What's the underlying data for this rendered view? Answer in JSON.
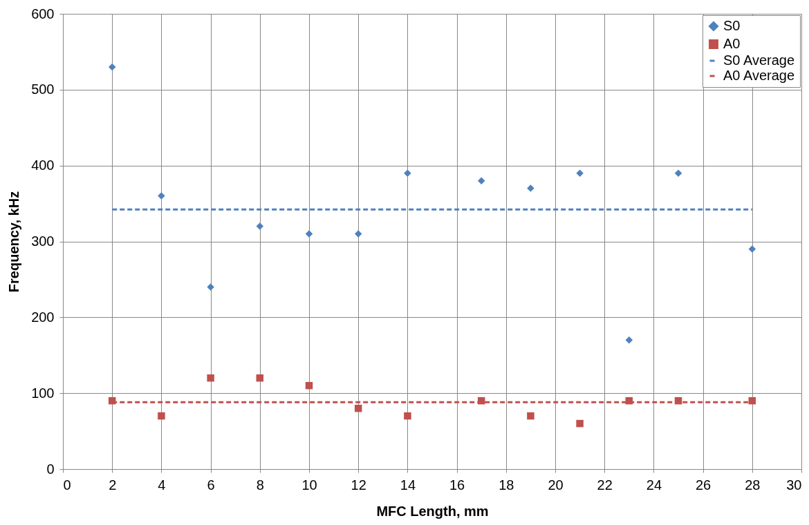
{
  "chart_data": {
    "type": "scatter",
    "xlabel": "MFC Length, mm",
    "ylabel": "Frequency, kHz",
    "xlim": [
      0,
      30
    ],
    "xticks": [
      0,
      2,
      4,
      6,
      8,
      10,
      12,
      14,
      16,
      18,
      20,
      22,
      24,
      26,
      28,
      30
    ],
    "ylim": [
      0,
      600
    ],
    "yticks": [
      0,
      100,
      200,
      300,
      400,
      500,
      600
    ],
    "grid": true,
    "legend": "top right",
    "series": [
      {
        "name": "S0",
        "marker": "diamond",
        "color": "#4f81bd",
        "x": [
          2,
          4,
          6,
          8,
          10,
          12,
          14,
          17,
          19,
          21,
          23,
          25,
          28
        ],
        "values": [
          530,
          360,
          240,
          320,
          310,
          310,
          390,
          380,
          370,
          390,
          170,
          390,
          290
        ]
      },
      {
        "name": "A0",
        "marker": "square",
        "color": "#c0504d",
        "x": [
          2,
          4,
          6,
          8,
          10,
          12,
          14,
          17,
          19,
          21,
          23,
          25,
          28
        ],
        "values": [
          90,
          70,
          120,
          120,
          110,
          80,
          70,
          90,
          70,
          60,
          90,
          90,
          90
        ]
      },
      {
        "name": "S0 Average",
        "type": "line",
        "line_style": "dashed",
        "marker": "none",
        "color": "#4f81bd",
        "x": [
          2,
          28
        ],
        "values": [
          342,
          342
        ]
      },
      {
        "name": "A0 Average",
        "type": "line",
        "line_style": "dashed",
        "marker": "none",
        "color": "#c0504d",
        "x": [
          2,
          28
        ],
        "values": [
          88,
          88
        ]
      }
    ]
  }
}
